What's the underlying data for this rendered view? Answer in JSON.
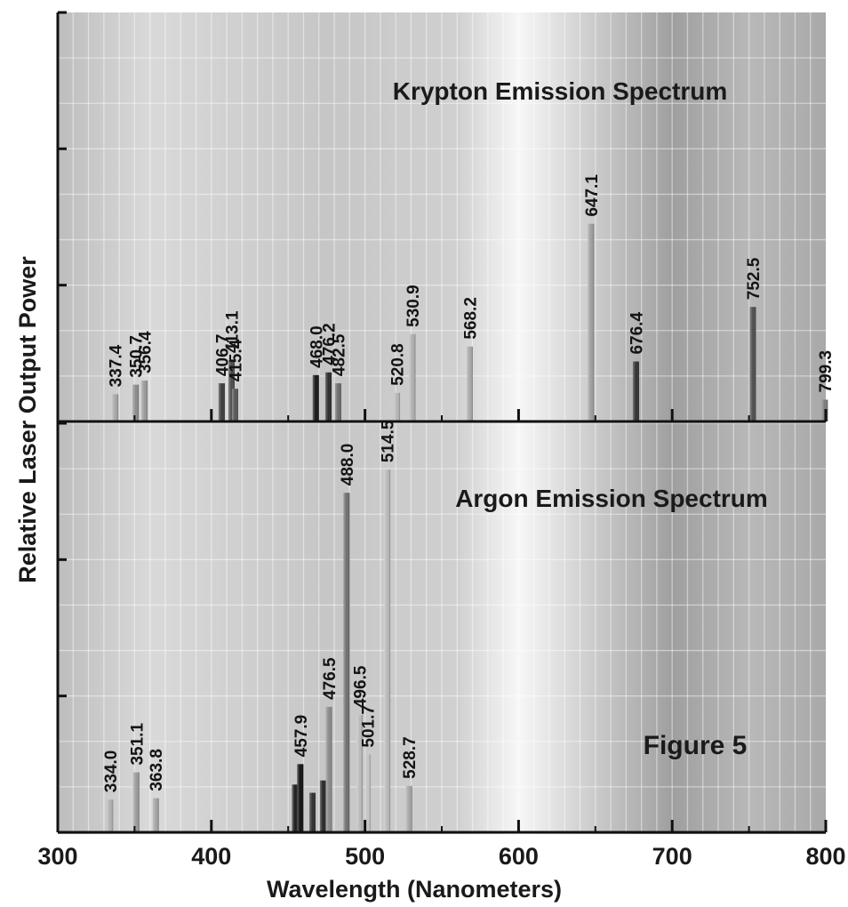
{
  "figure_label": "Figure 5",
  "chart_data": [
    {
      "type": "bar",
      "title": "Krypton Emission Spectrum",
      "xlabel": "Wavelength (Nanometers)",
      "ylabel": "Relative Laser Output Power",
      "xlim": [
        300,
        800
      ],
      "ylim": [
        0,
        3
      ],
      "grid": true,
      "x": [
        337.4,
        350.7,
        356.4,
        406.7,
        413.1,
        415.4,
        468.0,
        476.2,
        482.5,
        520.8,
        530.9,
        568.2,
        647.1,
        676.4,
        752.5,
        799.3
      ],
      "labels": [
        "337.4",
        "350.7",
        "356.4",
        "406.7",
        "413.1",
        "415.4",
        "468.0",
        "476.2",
        "482.5",
        "520.8",
        "530.9",
        "568.2",
        "647.1",
        "676.4",
        "752.5",
        "799.3"
      ],
      "values": [
        0.2,
        0.27,
        0.3,
        0.28,
        0.45,
        0.24,
        0.34,
        0.36,
        0.28,
        0.21,
        0.64,
        0.55,
        1.45,
        0.44,
        0.84,
        0.16
      ],
      "colors": [
        "#a6a6a6",
        "#8c8c8c",
        "#9a9a9a",
        "#3a3a3a",
        "#4a4a4a",
        "#555555",
        "#141414",
        "#2a2a2a",
        "#6a6a6a",
        "#b5b5b5",
        "#aeaeae",
        "#a8a8a8",
        "#9e9e9e",
        "#2f2f2f",
        "#4d4d4d",
        "#7a7a7a"
      ]
    },
    {
      "type": "bar",
      "title": "Argon Emission Spectrum",
      "xlabel": "Wavelength (Nanometers)",
      "ylabel": "Relative Laser Output Power",
      "xlim": [
        300,
        800
      ],
      "ylim": [
        0,
        3
      ],
      "grid": true,
      "x": [
        334.0,
        351.1,
        363.8,
        454.5,
        457.9,
        465.8,
        472.7,
        476.5,
        488.0,
        496.5,
        501.7,
        514.5,
        528.7
      ],
      "labels": [
        "334.0",
        "351.1",
        "363.8",
        "",
        "457.9",
        "",
        "",
        "476.5",
        "488.0",
        "496.5",
        "501.7",
        "514.5",
        "528.7"
      ],
      "values": [
        0.24,
        0.44,
        0.25,
        0.35,
        0.5,
        0.29,
        0.38,
        0.92,
        2.49,
        0.86,
        0.57,
        2.66,
        0.34
      ],
      "colors": [
        "#b0b0b0",
        "#9a9a9a",
        "#a3a3a3",
        "#1c1c1c",
        "#0e0e0e",
        "#303030",
        "#262626",
        "#8a8a8a",
        "#6e6e6e",
        "#bbbbbb",
        "#c4c4c4",
        "#b8b8b8",
        "#a5a5a5"
      ]
    }
  ],
  "x_ticks": [
    "300",
    "400",
    "500",
    "600",
    "700",
    "800"
  ]
}
